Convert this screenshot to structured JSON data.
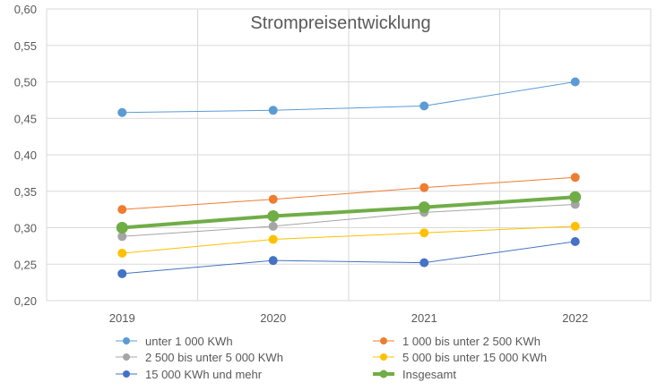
{
  "chart_data": {
    "type": "line",
    "title": "Strompreisentwicklung",
    "xlabel": "",
    "ylabel": "",
    "categories": [
      "2019",
      "2020",
      "2021",
      "2022"
    ],
    "ylim": [
      0.2,
      0.6
    ],
    "yticks": [
      "0,20",
      "0,25",
      "0,30",
      "0,35",
      "0,40",
      "0,45",
      "0,50",
      "0,55",
      "0,60"
    ],
    "grid": true,
    "legend_position": "bottom",
    "series": [
      {
        "name": "unter 1 000 KWh",
        "values": [
          0.458,
          0.461,
          0.467,
          0.5
        ],
        "color": "#5B9BD5",
        "width": 1
      },
      {
        "name": "1 000 bis unter 2 500 KWh",
        "values": [
          0.325,
          0.339,
          0.355,
          0.369
        ],
        "color": "#ED7D31",
        "width": 1
      },
      {
        "name": "2 500 bis unter 5 000 KWh",
        "values": [
          0.288,
          0.302,
          0.321,
          0.332
        ],
        "color": "#A5A5A5",
        "width": 1
      },
      {
        "name": "5 000 bis unter 15 000 KWh",
        "values": [
          0.265,
          0.284,
          0.293,
          0.302
        ],
        "color": "#FFC000",
        "width": 1
      },
      {
        "name": "15 000 KWh und mehr",
        "values": [
          0.237,
          0.255,
          0.252,
          0.281
        ],
        "color": "#4472C4",
        "width": 1
      },
      {
        "name": "Insgesamt",
        "values": [
          0.3,
          0.316,
          0.328,
          0.342
        ],
        "color": "#70AD47",
        "width": 4
      }
    ]
  }
}
